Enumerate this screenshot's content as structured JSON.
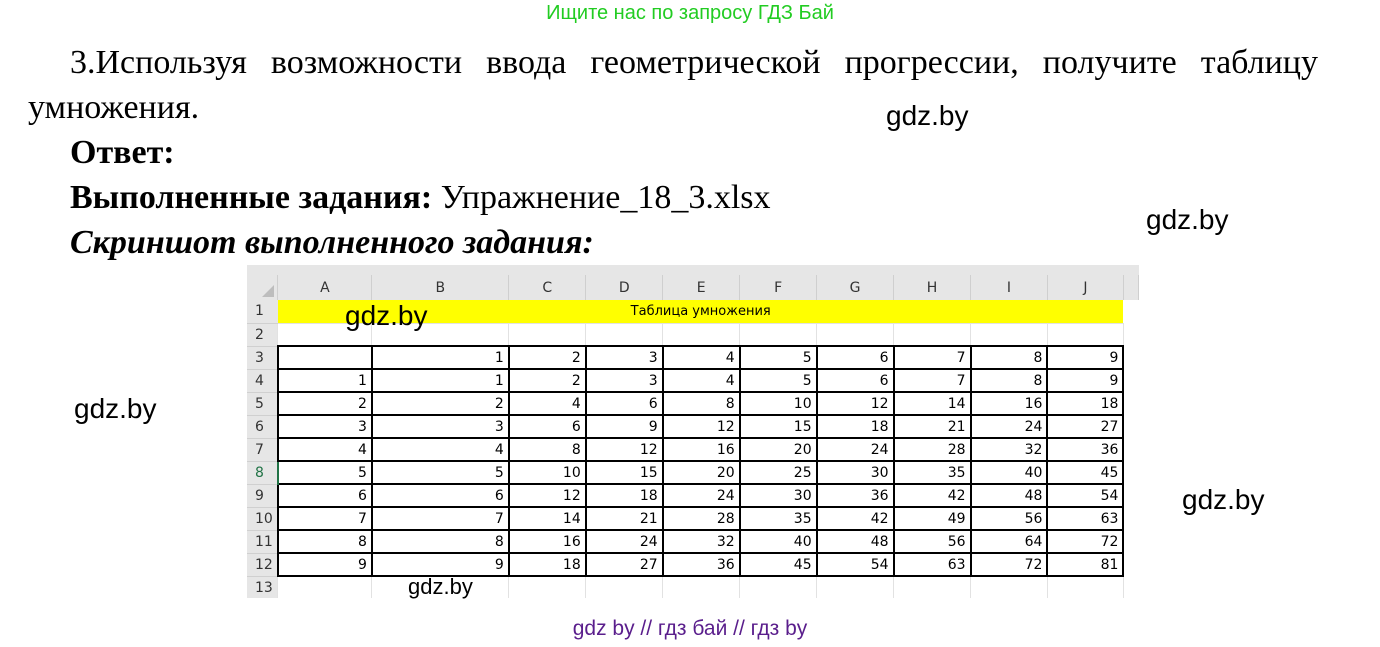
{
  "header_note": "Ищите нас по запросу ГДЗ Бай",
  "task": "3.Используя возможности ввода геометрической прогрессии, получите таблицу умножения.",
  "answer_label": "Ответ:",
  "done_label": "Выполненные задания:",
  "done_file": "Упражнение_18_3.xlsx",
  "screenshot_label": "Скриншот выполненного задания:",
  "watermark": "gdz.by",
  "footer": "gdz by  //  гдз бай  //  гдз by",
  "sheet": {
    "columns": [
      "A",
      "B",
      "C",
      "D",
      "E",
      "F",
      "G",
      "H",
      "I",
      "J"
    ],
    "title": "Таблица умножения",
    "rows": [
      [
        "",
        "1",
        "2",
        "3",
        "4",
        "5",
        "6",
        "7",
        "8",
        "9"
      ],
      [
        "1",
        "1",
        "2",
        "3",
        "4",
        "5",
        "6",
        "7",
        "8",
        "9"
      ],
      [
        "2",
        "2",
        "4",
        "6",
        "8",
        "10",
        "12",
        "14",
        "16",
        "18"
      ],
      [
        "3",
        "3",
        "6",
        "9",
        "12",
        "15",
        "18",
        "21",
        "24",
        "27"
      ],
      [
        "4",
        "4",
        "8",
        "12",
        "16",
        "20",
        "24",
        "28",
        "32",
        "36"
      ],
      [
        "5",
        "5",
        "10",
        "15",
        "20",
        "25",
        "30",
        "35",
        "40",
        "45"
      ],
      [
        "6",
        "6",
        "12",
        "18",
        "24",
        "30",
        "36",
        "42",
        "48",
        "54"
      ],
      [
        "7",
        "7",
        "14",
        "21",
        "28",
        "35",
        "42",
        "49",
        "56",
        "63"
      ],
      [
        "8",
        "8",
        "16",
        "24",
        "32",
        "40",
        "48",
        "56",
        "64",
        "72"
      ],
      [
        "9",
        "9",
        "18",
        "27",
        "36",
        "45",
        "54",
        "63",
        "72",
        "81"
      ]
    ],
    "row_numbers": [
      "1",
      "2",
      "3",
      "4",
      "5",
      "6",
      "7",
      "8",
      "9",
      "10",
      "11",
      "12",
      "13"
    ],
    "selected_row": "8",
    "title_fill": "#ffff00"
  }
}
